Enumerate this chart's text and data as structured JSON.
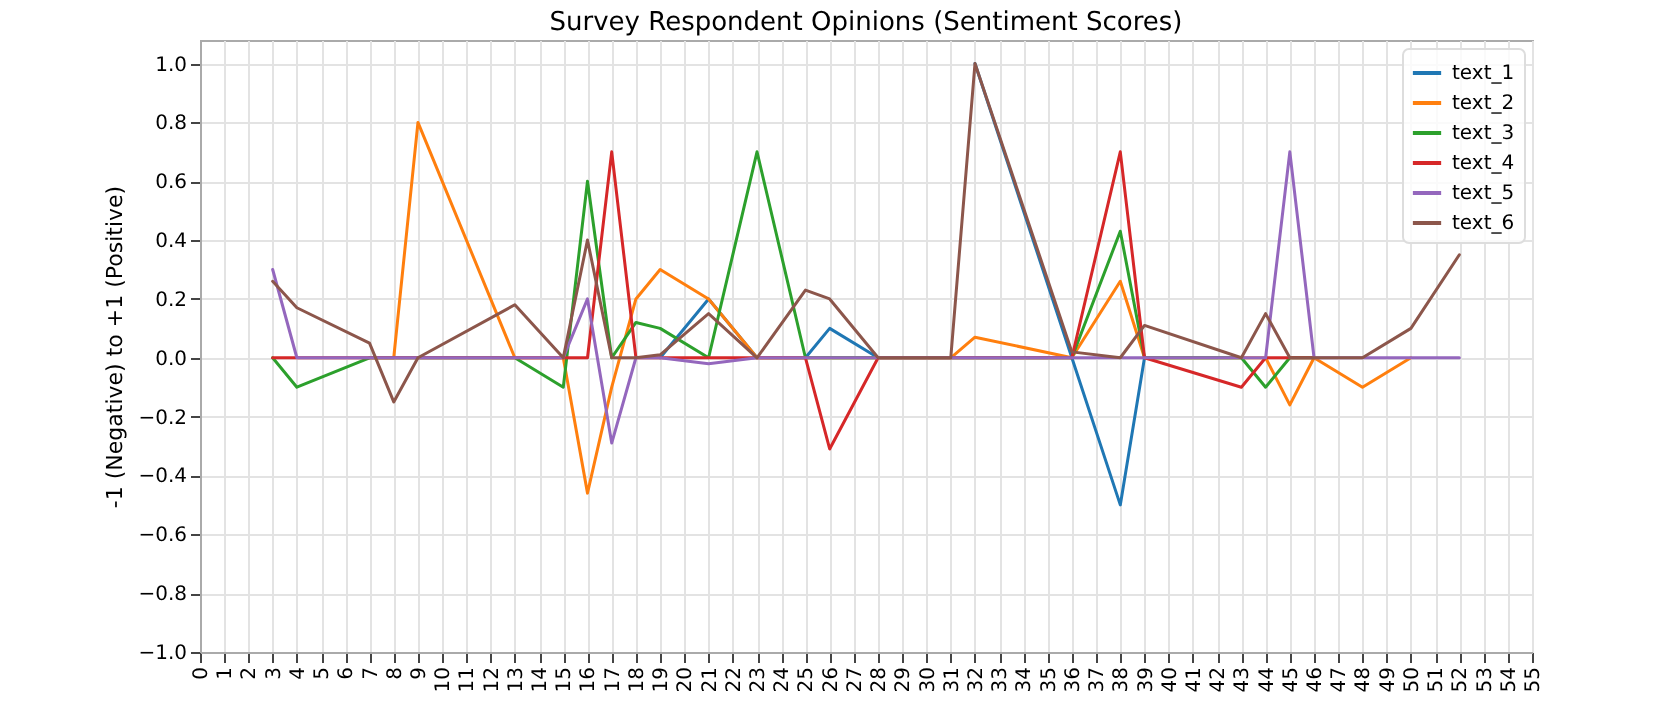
{
  "chart_data": {
    "type": "line",
    "title": "Survey Respondent Opinions (Sentiment Scores)",
    "ylabel": "-1 (Negative) to +1 (Positive)",
    "x": [
      3,
      4,
      7,
      8,
      9,
      13,
      15,
      16,
      17,
      18,
      19,
      21,
      23,
      25,
      26,
      28,
      31,
      32,
      36,
      38,
      39,
      43,
      44,
      45,
      46,
      48,
      50,
      52
    ],
    "series": [
      {
        "name": "text_1",
        "color": "#1f77b4",
        "values": [
          null,
          null,
          null,
          null,
          null,
          null,
          null,
          null,
          null,
          null,
          0,
          0.2,
          0,
          0,
          0.1,
          0,
          null,
          1.0,
          0,
          -0.5,
          0,
          null,
          null,
          null,
          null,
          null,
          null,
          null
        ]
      },
      {
        "name": "text_2",
        "color": "#ff7f0e",
        "values": [
          null,
          null,
          0,
          0,
          0.8,
          0,
          0,
          -0.46,
          -0.1,
          0.2,
          0.3,
          0.2,
          0,
          0,
          0,
          0,
          0,
          0.07,
          0,
          0.26,
          0,
          0,
          0,
          -0.16,
          0,
          -0.1,
          0,
          null
        ]
      },
      {
        "name": "text_3",
        "color": "#2ca02c",
        "values": [
          0,
          -0.1,
          0,
          0,
          0,
          0,
          -0.1,
          0.6,
          0,
          0.12,
          0.1,
          0,
          0.7,
          0,
          0,
          0,
          0,
          0,
          0,
          0.43,
          0,
          0,
          -0.1,
          0,
          0,
          null,
          null,
          null
        ]
      },
      {
        "name": "text_4",
        "color": "#d62728",
        "values": [
          0,
          0,
          0,
          0,
          0,
          0,
          0,
          0,
          0.7,
          0,
          0,
          0,
          0,
          0,
          -0.31,
          0,
          0,
          0,
          0,
          0.7,
          0,
          -0.1,
          0,
          0,
          0,
          null,
          null,
          null
        ]
      },
      {
        "name": "text_5",
        "color": "#9467bd",
        "values": [
          0.3,
          0,
          0,
          0,
          0,
          0,
          0,
          0.2,
          -0.29,
          0,
          0,
          -0.02,
          0,
          0,
          0,
          0,
          0,
          0,
          0,
          0,
          0,
          0,
          0,
          0.7,
          0,
          0,
          0,
          0
        ]
      },
      {
        "name": "text_6",
        "color": "#8c564b",
        "values": [
          0.26,
          0.17,
          0.05,
          -0.15,
          0,
          0.18,
          0,
          0.4,
          0,
          0,
          0.01,
          0.15,
          0,
          0.23,
          0.2,
          0,
          0,
          1.0,
          0.02,
          0,
          0.11,
          0,
          0.15,
          0,
          0,
          0,
          0.1,
          0.35
        ]
      }
    ],
    "xlim": [
      0,
      55
    ],
    "xticks": [
      0,
      1,
      2,
      3,
      4,
      5,
      6,
      7,
      8,
      9,
      10,
      11,
      12,
      13,
      14,
      15,
      16,
      17,
      18,
      19,
      20,
      21,
      22,
      23,
      24,
      25,
      26,
      27,
      28,
      29,
      30,
      31,
      32,
      33,
      34,
      35,
      36,
      37,
      38,
      39,
      40,
      41,
      42,
      43,
      44,
      45,
      46,
      47,
      48,
      49,
      50,
      51,
      52,
      53,
      54,
      55
    ],
    "ylim": [
      -1.0,
      1.08
    ],
    "yticks": [
      {
        "value": -1.0,
        "label": "−1.0"
      },
      {
        "value": -0.8,
        "label": "−0.8"
      },
      {
        "value": -0.6,
        "label": "−0.6"
      },
      {
        "value": -0.4,
        "label": "−0.4"
      },
      {
        "value": -0.2,
        "label": "−0.2"
      },
      {
        "value": 0,
        "label": "0.0"
      },
      {
        "value": 0.2,
        "label": "0.2"
      },
      {
        "value": 0.4,
        "label": "0.4"
      },
      {
        "value": 0.6,
        "label": "0.6"
      },
      {
        "value": 0.8,
        "label": "0.8"
      },
      {
        "value": 1.0,
        "label": "1.0"
      }
    ],
    "grid": true,
    "legend": "top right",
    "marker": "none",
    "line_style": "solid"
  }
}
